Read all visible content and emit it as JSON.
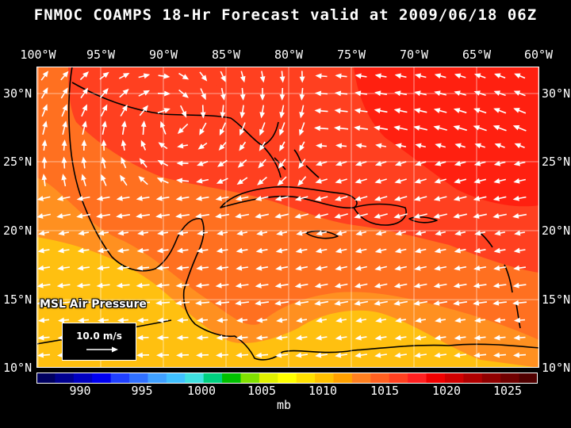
{
  "title": "FNMOC COAMPS 18-Hr Forecast valid at 2009/06/18 06Z",
  "longitude_labels": [
    "100°W",
    "95°W",
    "90°W",
    "85°W",
    "80°W",
    "75°W",
    "70°W",
    "65°W",
    "60°W"
  ],
  "latitude_labels": [
    "30°N",
    "25°N",
    "20°N",
    "15°N",
    "10°N"
  ],
  "field_label": "MSL Air Pressure",
  "reference_vector": {
    "label": "10.0 m/s"
  },
  "colorbar": {
    "ticks": [
      "990",
      "995",
      "1000",
      "1005",
      "1010",
      "1015",
      "1020",
      "1025"
    ],
    "unit": "mb",
    "colors": [
      "#000060",
      "#000090",
      "#0000c0",
      "#0000f0",
      "#2040ff",
      "#3070ff",
      "#40a0ff",
      "#40c0ff",
      "#40e0e0",
      "#00d080",
      "#00c000",
      "#80e000",
      "#e0f000",
      "#ffff00",
      "#ffe000",
      "#ffc000",
      "#ffa000",
      "#ff8020",
      "#ff6020",
      "#ff4020",
      "#ff2020",
      "#f00000",
      "#d00000",
      "#b00000",
      "#900000",
      "#700000",
      "#500000"
    ]
  },
  "map_fill_colors": {
    "1012": "#ffc010",
    "1014": "#ff9020",
    "1016": "#ff7020",
    "1018": "#ff4020",
    "1020": "#ff2010"
  }
}
